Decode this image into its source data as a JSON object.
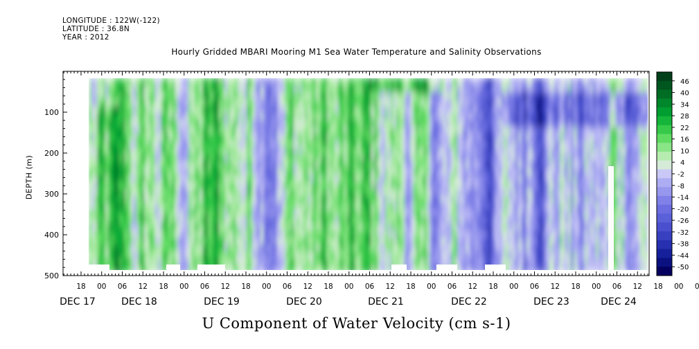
{
  "header": {
    "longitude": "LONGITUDE : 122W(-122)",
    "latitude": "LATITUDE : 36.8N",
    "year": "YEAR : 2012"
  },
  "chart_data": {
    "type": "heatmap",
    "title": "Hourly Gridded MBARI Mooring M1 Sea Water Temperature and Salinity Observations",
    "xlabel": "U Component of Water Velocity (cm s-1)",
    "ylabel": "DEPTH (m)",
    "y_axis": {
      "range": [
        0,
        500
      ],
      "inverted": true,
      "ticks": [
        100,
        200,
        300,
        400,
        500
      ]
    },
    "x_axis": {
      "hour_ticks": [
        "18",
        "00",
        "06",
        "12",
        "18",
        "00",
        "06",
        "12",
        "18",
        "00",
        "06",
        "12",
        "18",
        "00",
        "06",
        "12",
        "18",
        "00",
        "06",
        "12",
        "18",
        "00",
        "06",
        "12",
        "18",
        "00",
        "06",
        "12",
        "18",
        "00",
        "06",
        "12"
      ],
      "day_labels": [
        "DEC 17",
        "DEC 18",
        "DEC 19",
        "DEC 20",
        "DEC 21",
        "DEC 22",
        "DEC 23",
        "DEC 24"
      ]
    },
    "data_extent": {
      "start": "DEC 17 00:00 approx",
      "end": "DEC 24 end",
      "depth_range_m": [
        20,
        490
      ]
    },
    "colorbar": {
      "labels": [
        "46",
        "40",
        "34",
        "28",
        "22",
        "16",
        "10",
        "4",
        "-2",
        "-8",
        "-14",
        "-20",
        "-26",
        "-32",
        "-38",
        "-44",
        "-50"
      ],
      "colors": [
        "#003f1a",
        "#00561f",
        "#006d25",
        "#00872b",
        "#009e31",
        "#14b53a",
        "#36c94a",
        "#5fdb62",
        "#8ae586",
        "#b7ecb0",
        "#d5ebd8",
        "#c9c8f6",
        "#adadf4",
        "#9797ee",
        "#8080e8",
        "#6b6de0",
        "#5a60d8",
        "#4a4fcd",
        "#3840c0",
        "#2630b0",
        "#15209a",
        "#0b1180",
        "#050060"
      ]
    }
  }
}
